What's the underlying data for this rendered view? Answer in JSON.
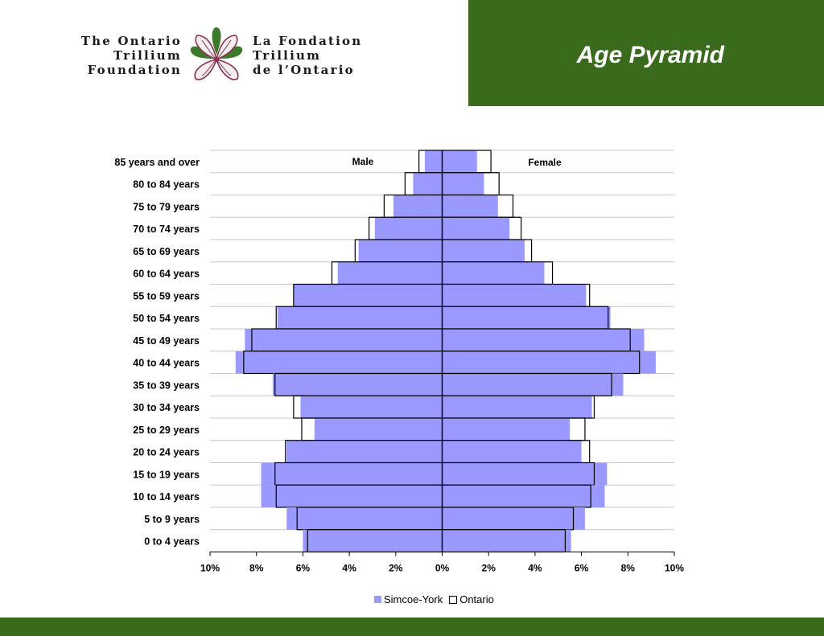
{
  "header": {
    "title": "Age Pyramid",
    "band_color": "#3a6b1c"
  },
  "logo": {
    "english_lines": [
      "The Ontario",
      "Trillium",
      "Foundation"
    ],
    "french_lines": [
      "La Fondation",
      "Trillium",
      "de l’Ontario"
    ],
    "icon": "trillium-flower-icon"
  },
  "chart_data": {
    "type": "bar",
    "orientation": "horizontal-pyramid",
    "categories": [
      "85 years and over",
      "80 to 84 years",
      "75 to 79 years",
      "70 to 74 years",
      "65 to 69 years",
      "60 to 64 years",
      "55 to 59 years",
      "50 to 54 years",
      "45 to 49 years",
      "40 to 44 years",
      "35 to 39 years",
      "30 to 34 years",
      "25 to 29 years",
      "20 to 24 years",
      "15 to 19 years",
      "10 to 14 years",
      "5 to 9 years",
      "0 to 4 years"
    ],
    "side_labels": {
      "left": "Male",
      "right": "Female"
    },
    "series": [
      {
        "name": "Simcoe-York",
        "color": "#9999ff",
        "male": [
          0.75,
          1.25,
          2.1,
          2.9,
          3.6,
          4.5,
          6.4,
          7.1,
          8.5,
          8.9,
          7.3,
          6.1,
          5.5,
          6.7,
          7.8,
          7.8,
          6.7,
          6.0
        ],
        "female": [
          1.5,
          1.8,
          2.4,
          2.9,
          3.55,
          4.4,
          6.2,
          7.25,
          8.7,
          9.2,
          7.8,
          6.45,
          5.5,
          6.0,
          7.1,
          7.0,
          6.15,
          5.55
        ]
      },
      {
        "name": "Ontario",
        "color": "#ffffff",
        "male": [
          1.0,
          1.6,
          2.5,
          3.15,
          3.75,
          4.75,
          6.4,
          7.15,
          8.2,
          8.55,
          7.2,
          6.4,
          6.05,
          6.75,
          7.2,
          7.15,
          6.25,
          5.8
        ],
        "female": [
          2.1,
          2.45,
          3.05,
          3.4,
          3.85,
          4.75,
          6.35,
          7.15,
          8.1,
          8.5,
          7.3,
          6.55,
          6.15,
          6.35,
          6.55,
          6.4,
          5.65,
          5.3
        ]
      }
    ],
    "x_ticks": [
      "10%",
      "8%",
      "6%",
      "4%",
      "2%",
      "0%",
      "2%",
      "4%",
      "6%",
      "8%",
      "10%"
    ],
    "xlim": [
      -10,
      10
    ],
    "grid": "horizontal",
    "legend_position": "bottom-center"
  },
  "legend": {
    "simcoe": "Simcoe-York",
    "ontario": "Ontario"
  }
}
